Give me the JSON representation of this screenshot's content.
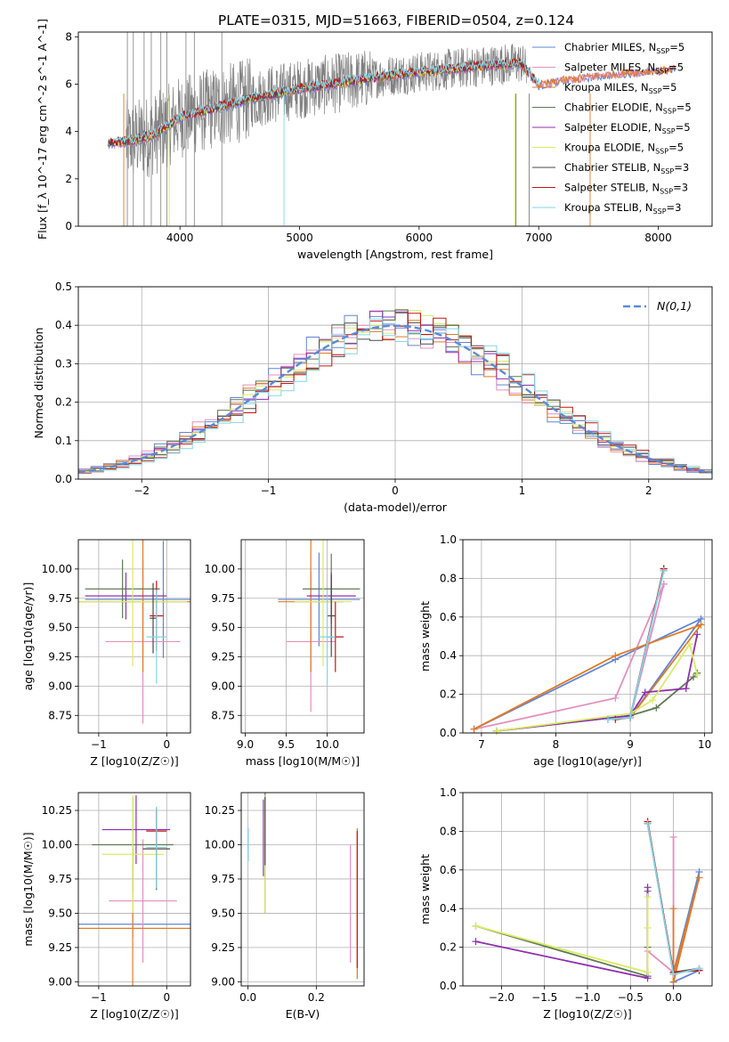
{
  "figure": {
    "title": "PLATE=0315, MJD=51663, FIBERID=0504, z=0.124"
  },
  "models": [
    {
      "name": "Chabrier MILES",
      "nssp": "5",
      "color": "#5f86d9"
    },
    {
      "name": "Salpeter MILES",
      "nssp": "5",
      "color": "#e58fbf"
    },
    {
      "name": "Kroupa MILES",
      "nssp": "5",
      "color": "#e07a26"
    },
    {
      "name": "Chabrier ELODIE",
      "nssp": "5",
      "color": "#5f7a52"
    },
    {
      "name": "Salpeter ELODIE",
      "nssp": "5",
      "color": "#8f2fb0"
    },
    {
      "name": "Kroupa ELODIE",
      "nssp": "5",
      "color": "#d8ec62"
    },
    {
      "name": "Chabrier STELIB",
      "nssp": "3",
      "color": "#4a4a4a"
    },
    {
      "name": "Salpeter STELIB",
      "nssp": "3",
      "color": "#c41414"
    },
    {
      "name": "Kroupa STELIB",
      "nssp": "3",
      "color": "#82d6e6"
    }
  ],
  "chart_data": [
    {
      "id": "spectrum",
      "type": "line",
      "xlabel": "wavelength [Angstrom, rest frame]",
      "ylabel": "Flux [f_λ 10^-17 erg cm^-2 s^-1 A^-1]",
      "xlim": [
        3150,
        8450
      ],
      "ylim": [
        0,
        8.2
      ],
      "xticks": [
        4000,
        5000,
        6000,
        7000,
        8000
      ],
      "yticks": [
        0,
        2,
        4,
        6,
        8
      ],
      "grid": false,
      "legend": "right",
      "continuum": [
        [
          3400,
          3.5
        ],
        [
          3600,
          3.6
        ],
        [
          3800,
          3.9
        ],
        [
          4000,
          4.6
        ],
        [
          4300,
          5.0
        ],
        [
          4600,
          5.4
        ],
        [
          5000,
          5.8
        ],
        [
          5400,
          6.1
        ],
        [
          5800,
          6.4
        ],
        [
          6200,
          6.6
        ],
        [
          6600,
          6.8
        ],
        [
          6850,
          6.9
        ],
        [
          7000,
          6.0
        ],
        [
          7200,
          6.2
        ],
        [
          7500,
          6.4
        ],
        [
          7800,
          6.55
        ],
        [
          8000,
          6.6
        ],
        [
          8150,
          6.7
        ]
      ]
    },
    {
      "id": "residuals",
      "type": "histogram",
      "xlabel": "(data-model)/error",
      "ylabel": "Normed distribution",
      "xlim": [
        -2.5,
        2.5
      ],
      "ylim": [
        0,
        0.5
      ],
      "xticks": [
        -2,
        -1,
        0,
        1,
        2
      ],
      "yticks": [
        0.0,
        0.1,
        0.2,
        0.3,
        0.4,
        0.5
      ],
      "grid": true,
      "legend": "top-right",
      "reference_curve": "N(0,1)",
      "bin_width": 0.1
    },
    {
      "id": "age_vs_Z",
      "type": "errorbar",
      "xlabel": "Z [log10(Z/Z☉)]",
      "ylabel": "age [log10(age/yr)]",
      "xlim": [
        -1.3,
        0.35
      ],
      "ylim": [
        8.6,
        10.25
      ],
      "xticks": [
        -1,
        0
      ],
      "yticks": [
        8.75,
        9.0,
        9.25,
        9.5,
        9.75,
        10.0
      ],
      "grid": true,
      "points": [
        {
          "x": -0.05,
          "y": 9.74,
          "xerr": 1.15,
          "yerr": 0.5
        },
        {
          "x": -0.35,
          "y": 9.38,
          "xerr": 0.55,
          "yerr": 0.7
        },
        {
          "x": -0.35,
          "y": 9.72,
          "xerr": 1.2,
          "yerr": 0.6
        },
        {
          "x": -0.65,
          "y": 9.83,
          "xerr": 0.55,
          "yerr": 0.25
        },
        {
          "x": -0.6,
          "y": 9.77,
          "xerr": 0.6,
          "yerr": 0.2
        },
        {
          "x": -0.5,
          "y": 9.72,
          "xerr": 0.8,
          "yerr": 0.55
        },
        {
          "x": -0.2,
          "y": 9.58,
          "xerr": 0.05,
          "yerr": 0.3
        },
        {
          "x": -0.15,
          "y": 9.6,
          "xerr": 0.1,
          "yerr": 0.3
        },
        {
          "x": -0.15,
          "y": 9.42,
          "xerr": 0.15,
          "yerr": 0.4
        }
      ]
    },
    {
      "id": "age_vs_mass",
      "type": "errorbar",
      "xlabel": "mass [log10(M/M☉)]",
      "ylabel": "",
      "xlim": [
        8.95,
        10.45
      ],
      "ylim": [
        8.6,
        10.25
      ],
      "xticks": [
        9.0,
        9.5,
        10.0
      ],
      "yticks": [
        8.75,
        9.0,
        9.25,
        9.5,
        9.75,
        10.0
      ],
      "grid": true,
      "points": [
        {
          "x": 9.9,
          "y": 9.74,
          "xerr": 0.5,
          "yerr": 0.4
        },
        {
          "x": 9.8,
          "y": 9.38,
          "xerr": 0.3,
          "yerr": 0.6
        },
        {
          "x": 9.8,
          "y": 9.72,
          "xerr": 0.4,
          "yerr": 0.6
        },
        {
          "x": 10.05,
          "y": 9.83,
          "xerr": 0.35,
          "yerr": 0.3
        },
        {
          "x": 10.05,
          "y": 9.77,
          "xerr": 0.3,
          "yerr": 0.2
        },
        {
          "x": 9.95,
          "y": 9.72,
          "xerr": 0.35,
          "yerr": 0.55
        },
        {
          "x": 10.05,
          "y": 9.6,
          "xerr": 0.05,
          "yerr": 0.35
        },
        {
          "x": 10.1,
          "y": 9.42,
          "xerr": 0.1,
          "yerr": 0.3
        },
        {
          "x": 10.0,
          "y": 9.42,
          "xerr": 0.1,
          "yerr": 0.4
        }
      ]
    },
    {
      "id": "weight_vs_age",
      "type": "line",
      "xlabel": "age [log10(age/yr)]",
      "ylabel": "mass weight",
      "xlim": [
        6.75,
        10.1
      ],
      "ylim": [
        0,
        1.0
      ],
      "xticks": [
        7,
        8,
        9,
        10
      ],
      "yticks": [
        0.0,
        0.2,
        0.4,
        0.6,
        0.8,
        1.0
      ],
      "grid": true,
      "series": [
        {
          "x": [
            6.9,
            8.8,
            9.95,
            9.0,
            9.45
          ],
          "y": [
            0.02,
            0.38,
            0.59,
            0.08,
            0.84
          ]
        },
        {
          "x": [
            6.9,
            8.8,
            9.45,
            9.0,
            9.45
          ],
          "y": [
            0.02,
            0.18,
            0.77,
            0.08,
            0.77
          ]
        },
        {
          "x": [
            6.9,
            8.8,
            9.95,
            9.0,
            9.45
          ],
          "y": [
            0.02,
            0.4,
            0.56,
            0.08,
            0.85
          ]
        },
        {
          "x": [
            7.2,
            9.0,
            9.35,
            9.85,
            9.9
          ],
          "y": [
            0.01,
            0.09,
            0.13,
            0.29,
            0.31
          ]
        },
        {
          "x": [
            7.2,
            9.0,
            9.2,
            9.75,
            9.9
          ],
          "y": [
            0.01,
            0.09,
            0.21,
            0.23,
            0.51
          ]
        },
        {
          "x": [
            7.2,
            9.0,
            9.3,
            9.8,
            9.9
          ],
          "y": [
            0.01,
            0.1,
            0.17,
            0.46,
            0.3
          ]
        },
        {
          "x": [
            8.7,
            9.0,
            9.45
          ],
          "y": [
            0.07,
            0.08,
            0.85
          ]
        },
        {
          "x": [
            8.8,
            9.0,
            9.45
          ],
          "y": [
            0.07,
            0.08,
            0.85
          ]
        },
        {
          "x": [
            8.7,
            9.0,
            9.45
          ],
          "y": [
            0.07,
            0.08,
            0.84
          ]
        }
      ]
    },
    {
      "id": "mass_vs_Z",
      "type": "errorbar",
      "xlabel": "Z [log10(Z/Z☉)]",
      "ylabel": "mass [log10(M/M☉)]",
      "xlim": [
        -1.3,
        0.35
      ],
      "ylim": [
        8.97,
        10.38
      ],
      "xticks": [
        -1,
        0
      ],
      "yticks": [
        9.0,
        9.25,
        9.5,
        9.75,
        10.0,
        10.25
      ],
      "grid": true,
      "points": [
        {
          "x": -0.5,
          "y": 9.42,
          "xerr": 1.3,
          "yerr": 0.1
        },
        {
          "x": -0.35,
          "y": 9.59,
          "xerr": 0.5,
          "yerr": 0.45
        },
        {
          "x": -0.5,
          "y": 9.39,
          "xerr": 1.3,
          "yerr": 0.6
        },
        {
          "x": -0.5,
          "y": 10.0,
          "xerr": 0.6,
          "yerr": 0.35
        },
        {
          "x": -0.45,
          "y": 10.11,
          "xerr": 0.5,
          "yerr": 0.25
        },
        {
          "x": -0.5,
          "y": 9.93,
          "xerr": 0.45,
          "yerr": 0.43
        },
        {
          "x": -0.15,
          "y": 9.97,
          "xerr": 0.2,
          "yerr": 0.3
        },
        {
          "x": -0.15,
          "y": 10.1,
          "xerr": 0.15,
          "yerr": 0.15
        },
        {
          "x": -0.15,
          "y": 9.98,
          "xerr": 0.15,
          "yerr": 0.3
        }
      ]
    },
    {
      "id": "mass_vs_ebv",
      "type": "errorbar",
      "xlabel": "E(B-V)",
      "ylabel": "",
      "xlim": [
        -0.02,
        0.34
      ],
      "ylim": [
        8.97,
        10.38
      ],
      "xticks": [
        0.0,
        0.2
      ],
      "yticks": [
        9.0,
        9.25,
        9.5,
        9.75,
        10.0,
        10.25
      ],
      "grid": true,
      "points": [
        {
          "x": 0.0,
          "y": 10.0,
          "xerr": 0,
          "yerr": 0.12
        },
        {
          "x": 0.3,
          "y": 9.57,
          "xerr": 0,
          "yerr": 0.43
        },
        {
          "x": 0.32,
          "y": 9.57,
          "xerr": 0,
          "yerr": 0.55
        },
        {
          "x": 0.05,
          "y": 9.94,
          "xerr": 0,
          "yerr": 0.44
        },
        {
          "x": 0.045,
          "y": 10.05,
          "xerr": 0,
          "yerr": 0.28
        },
        {
          "x": 0.05,
          "y": 9.93,
          "xerr": 0,
          "yerr": 0.43
        },
        {
          "x": 0.05,
          "y": 10.1,
          "xerr": 0,
          "yerr": 0.25
        },
        {
          "x": 0.32,
          "y": 9.6,
          "xerr": 0,
          "yerr": 0.5
        },
        {
          "x": 0.0,
          "y": 10.0,
          "xerr": 0,
          "yerr": 0.12
        }
      ]
    },
    {
      "id": "weight_vs_Z",
      "type": "line",
      "xlabel": "Z [log10(Z/Z☉)]",
      "ylabel": "mass weight",
      "xlim": [
        -2.45,
        0.45
      ],
      "ylim": [
        0,
        1.0
      ],
      "xticks": [
        -2.0,
        -1.5,
        -1.0,
        -0.5,
        0.0
      ],
      "yticks": [
        0.0,
        0.2,
        0.4,
        0.6,
        0.8,
        1.0
      ],
      "grid": true,
      "series": [
        {
          "x": [
            -0.3,
            0.0,
            0.3,
            0.0,
            0.3
          ],
          "y": [
            0.84,
            0.07,
            0.59,
            0.02,
            0.08
          ]
        },
        {
          "x": [
            -0.3,
            0.0,
            0.0,
            0.0
          ],
          "y": [
            0.18,
            0.07,
            0.77,
            0.02
          ]
        },
        {
          "x": [
            -0.3,
            0.0,
            0.3,
            0.0,
            0.0
          ],
          "y": [
            0.85,
            0.06,
            0.56,
            0.02,
            0.4
          ]
        },
        {
          "x": [
            -2.3,
            -0.3,
            -0.3,
            -0.3
          ],
          "y": [
            0.31,
            0.05,
            0.49,
            0.2
          ]
        },
        {
          "x": [
            -2.3,
            -0.3,
            -0.3
          ],
          "y": [
            0.23,
            0.04,
            0.51
          ]
        },
        {
          "x": [
            -2.3,
            -0.3,
            -0.3,
            -0.3
          ],
          "y": [
            0.31,
            0.07,
            0.46,
            0.3
          ]
        },
        {
          "x": [
            -0.3,
            0.0,
            0.3
          ],
          "y": [
            0.84,
            0.07,
            0.09
          ]
        },
        {
          "x": [
            -0.3,
            0.0,
            0.3
          ],
          "y": [
            0.85,
            0.07,
            0.08
          ]
        },
        {
          "x": [
            -0.3,
            0.0,
            0.3
          ],
          "y": [
            0.84,
            0.06,
            0.09
          ]
        }
      ]
    }
  ]
}
